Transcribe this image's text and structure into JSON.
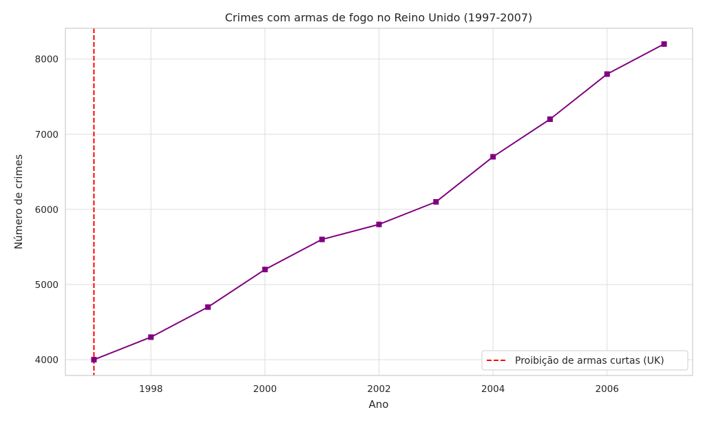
{
  "chart_data": {
    "type": "line",
    "title": "Crimes com armas de fogo no Reino Unido (1997-2007)",
    "xlabel": "Ano",
    "ylabel": "Número de crimes",
    "x": [
      1997,
      1998,
      1999,
      2000,
      2001,
      2002,
      2003,
      2004,
      2005,
      2006,
      2007
    ],
    "series": [
      {
        "values": [
          4000,
          4300,
          4700,
          5200,
          5600,
          5800,
          6100,
          6700,
          7200,
          7800,
          8200
        ],
        "color": "#800080",
        "marker": "square"
      }
    ],
    "xlim": [
      1996.5,
      2007.5
    ],
    "ylim": [
      3790,
      8410
    ],
    "x_ticks": [
      1998,
      2000,
      2002,
      2004,
      2006
    ],
    "x_tick_labels": [
      "1998",
      "2000",
      "2002",
      "2004",
      "2006"
    ],
    "y_ticks": [
      4000,
      5000,
      6000,
      7000,
      8000
    ],
    "y_tick_labels": [
      "4000",
      "5000",
      "6000",
      "7000",
      "8000"
    ],
    "grid": true,
    "reference_line": {
      "orientation": "vertical",
      "x": 1997,
      "label": "Proibição de armas curtas (UK)",
      "color": "#ff0000",
      "style": "dashed"
    },
    "legend": {
      "position": "lower-right"
    }
  }
}
